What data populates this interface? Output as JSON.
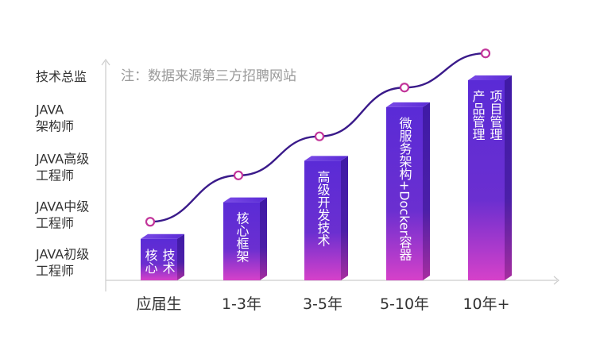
{
  "chart_data": {
    "type": "bar",
    "note": "注：数据来源第三方招聘网站",
    "categories": [
      "应届生",
      "1-3年",
      "3-5年",
      "5-10年",
      "10年+"
    ],
    "y_levels": [
      [
        "JAVA初级",
        "工程师"
      ],
      [
        "JAVA中级",
        "工程师"
      ],
      [
        "JAVA高级",
        "工程师"
      ],
      [
        "JAVA",
        "架构师"
      ],
      [
        "技术总监"
      ]
    ],
    "values": [
      0.85,
      1.6,
      2.45,
      3.55,
      4.1
    ],
    "curve_values": [
      1.2,
      2.15,
      2.95,
      3.95,
      4.65
    ],
    "ylim": [
      0,
      4.8
    ],
    "bar_labels": [
      {
        "columns": [
          "核心",
          "技术"
        ]
      },
      {
        "columns": [
          "核心框架"
        ]
      },
      {
        "columns": [
          "高级开发技术"
        ]
      },
      {
        "columns": [
          "微服务架构+Docker容器"
        ]
      },
      {
        "columns": [
          "产品管理",
          "项目管理"
        ]
      }
    ],
    "colors": {
      "bar_top": "#5a2bd6",
      "bar_bottom": "#d641c9",
      "curve": "#3a1a8a",
      "marker": "#c2359a",
      "axis": "#cccccc"
    }
  }
}
